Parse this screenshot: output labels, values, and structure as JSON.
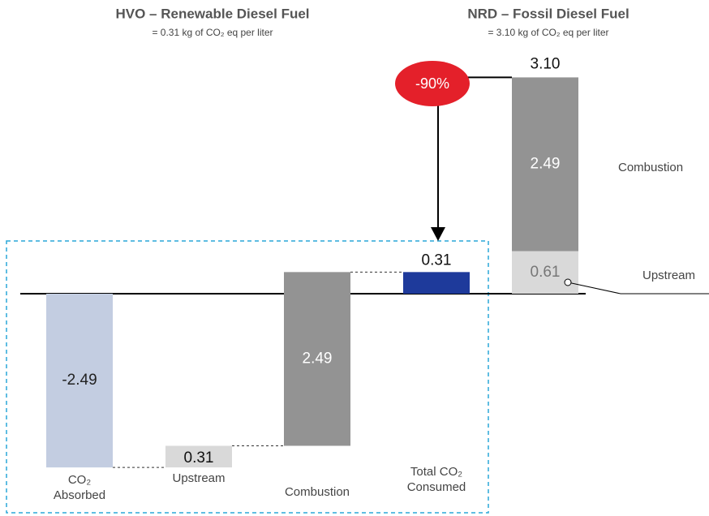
{
  "chart_data": {
    "type": "waterfall-comparison",
    "annotation": "-90%",
    "groups": [
      {
        "type": "waterfall",
        "title": "HVO – Renewable Diesel Fuel",
        "subtitle": "= 0.31 kg of CO₂ eq per liter",
        "categories": [
          "CO₂ Absorbed",
          "Upstream",
          "Combustion",
          "Total CO₂ Consumed"
        ],
        "values": [
          -2.49,
          0.31,
          2.49,
          0.31
        ],
        "colors": [
          "#c3cde1",
          "#d9d9d9",
          "#939393",
          "#1e3a9b"
        ]
      },
      {
        "type": "stacked",
        "title": "NRD – Fossil Diesel Fuel",
        "subtitle": "= 3.10 kg of CO₂ eq per liter",
        "categories": [
          "Upstream",
          "Combustion",
          null
        ],
        "values": [
          0.61,
          2.49,
          3.1
        ],
        "value_labels": [
          "0.61",
          "2.49",
          "3.10"
        ],
        "colors": [
          "#d9d9d9",
          "#939393",
          "#000000"
        ]
      }
    ]
  }
}
